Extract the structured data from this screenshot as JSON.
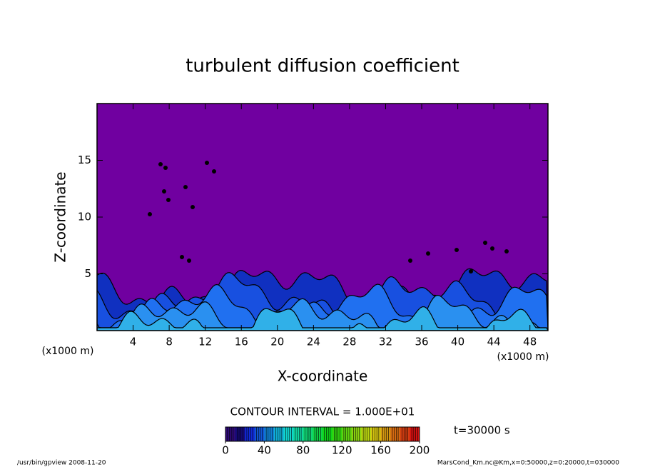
{
  "chart_data": {
    "type": "contour",
    "title": "turbulent diffusion coefficient",
    "x_label": "X-coordinate",
    "y_label": "Z-coordinate",
    "x_unit": "(x1000 m)",
    "y_unit": "(x1000 m)",
    "xlim": [
      0,
      50
    ],
    "xticks": [
      4,
      8,
      12,
      16,
      20,
      24,
      28,
      32,
      36,
      40,
      44,
      48
    ],
    "ylim": [
      0,
      20
    ],
    "yticks": [
      5,
      10,
      15
    ],
    "background_color": "#7000a0",
    "contour_interval": "CONTOUR INTERVAL = 1.000E+01",
    "colorbar": {
      "lim": [
        0,
        200
      ],
      "ticks": [
        0,
        40,
        80,
        120,
        160,
        200
      ]
    },
    "time_label": "t=30000 s",
    "footer_left": "/usr/bin/gpview   2008-11-20",
    "footer_right": "MarsCond_Km.nc@Km,x=0:50000,z=0:20000,t=030000"
  }
}
